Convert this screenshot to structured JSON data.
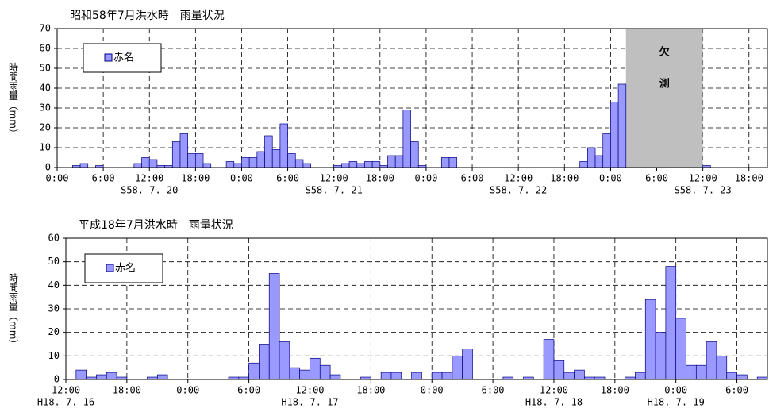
{
  "chart_data": [
    {
      "type": "bar",
      "title": "昭和58年7月洪水時　雨量状況",
      "y_label": "時間雨量（mm）",
      "x": [
        2,
        3,
        5,
        10,
        11,
        12,
        13,
        14,
        15,
        16,
        17,
        18,
        19,
        22,
        23,
        24,
        25,
        26,
        27,
        28,
        29,
        30,
        31,
        32,
        36,
        37,
        38,
        39,
        40,
        41,
        42,
        43,
        44,
        45,
        46,
        47,
        50,
        51,
        68,
        69,
        70,
        71,
        72,
        73,
        84
      ],
      "series": [
        {
          "name": "赤名",
          "color": "#9999ff",
          "values": [
            1,
            2,
            1,
            2,
            5,
            4,
            1,
            1,
            13,
            17,
            7,
            7,
            2,
            3,
            2,
            5,
            5,
            8,
            16,
            9,
            22,
            7,
            4,
            2,
            1,
            2,
            3,
            2,
            3,
            3,
            1,
            6,
            6,
            29,
            13,
            1,
            5,
            5,
            3,
            10,
            6,
            17,
            33,
            42,
            1
          ]
        }
      ],
      "missing": {
        "start": 74,
        "end": 84,
        "label": [
          "欠",
          "測"
        ]
      },
      "xlim": [
        0,
        92.4
      ],
      "ylim": [
        0,
        70
      ],
      "yticks": [
        0,
        10,
        20,
        30,
        40,
        50,
        60,
        70
      ],
      "xticks": [
        {
          "value": 0,
          "label": "0:00"
        },
        {
          "value": 6,
          "label": "6:00"
        },
        {
          "value": 12,
          "label": "12:00",
          "sublabel": "S58. 7. 20"
        },
        {
          "value": 18,
          "label": "18:00"
        },
        {
          "value": 24,
          "label": "0:00"
        },
        {
          "value": 30,
          "label": "6:00"
        },
        {
          "value": 36,
          "label": "12:00",
          "sublabel": "S58. 7. 21"
        },
        {
          "value": 42,
          "label": "18:00"
        },
        {
          "value": 48,
          "label": "0:00"
        },
        {
          "value": 54,
          "label": "6:00"
        },
        {
          "value": 60,
          "label": "12:00",
          "sublabel": "S58. 7. 22"
        },
        {
          "value": 66,
          "label": "18:00"
        },
        {
          "value": 72,
          "label": "0:00"
        },
        {
          "value": 78,
          "label": "6:00"
        },
        {
          "value": 84,
          "label": "12:00",
          "sublabel": "S58. 7. 23"
        },
        {
          "value": 90,
          "label": "18:00"
        }
      ],
      "grid": true
    },
    {
      "type": "bar",
      "title": "平成18年7月洪水時　雨量状況",
      "y_label": "時間雨量（mm）",
      "x": [
        1,
        2,
        3,
        4,
        5,
        8,
        9,
        16,
        17,
        18,
        19,
        20,
        21,
        22,
        23,
        24,
        25,
        26,
        29,
        31,
        32,
        34,
        36,
        37,
        38,
        39,
        43,
        45,
        47,
        48,
        49,
        50,
        51,
        52,
        55,
        56,
        57,
        58,
        59,
        60,
        61,
        62,
        63,
        64,
        65,
        66,
        68
      ],
      "series": [
        {
          "name": "赤名",
          "color": "#9999ff",
          "values": [
            4,
            1,
            2,
            3,
            1,
            1,
            2,
            1,
            1,
            7,
            15,
            45,
            16,
            5,
            4,
            9,
            6,
            2,
            1,
            3,
            3,
            3,
            3,
            3,
            10,
            13,
            1,
            1,
            17,
            8,
            3,
            4,
            1,
            1,
            1,
            3,
            34,
            20,
            48,
            26,
            6,
            6,
            16,
            10,
            3,
            2,
            1
          ]
        }
      ],
      "xlim": [
        0,
        69
      ],
      "ylim": [
        0,
        60
      ],
      "yticks": [
        0,
        10,
        20,
        30,
        40,
        50,
        60
      ],
      "xticks": [
        {
          "value": 0,
          "label": "12:00",
          "sublabel": "H18. 7. 16"
        },
        {
          "value": 6,
          "label": "18:00"
        },
        {
          "value": 12,
          "label": "0:00"
        },
        {
          "value": 18,
          "label": "6:00"
        },
        {
          "value": 24,
          "label": "12:00",
          "sublabel": "H18. 7. 17"
        },
        {
          "value": 30,
          "label": "18:00"
        },
        {
          "value": 36,
          "label": "0:00"
        },
        {
          "value": 42,
          "label": "6:00"
        },
        {
          "value": 48,
          "label": "12:00",
          "sublabel": "H18. 7. 18"
        },
        {
          "value": 54,
          "label": "18:00"
        },
        {
          "value": 60,
          "label": "0:00",
          "sublabel": "H18. 7. 19"
        },
        {
          "value": 66,
          "label": "6:00"
        }
      ],
      "grid": true
    }
  ]
}
